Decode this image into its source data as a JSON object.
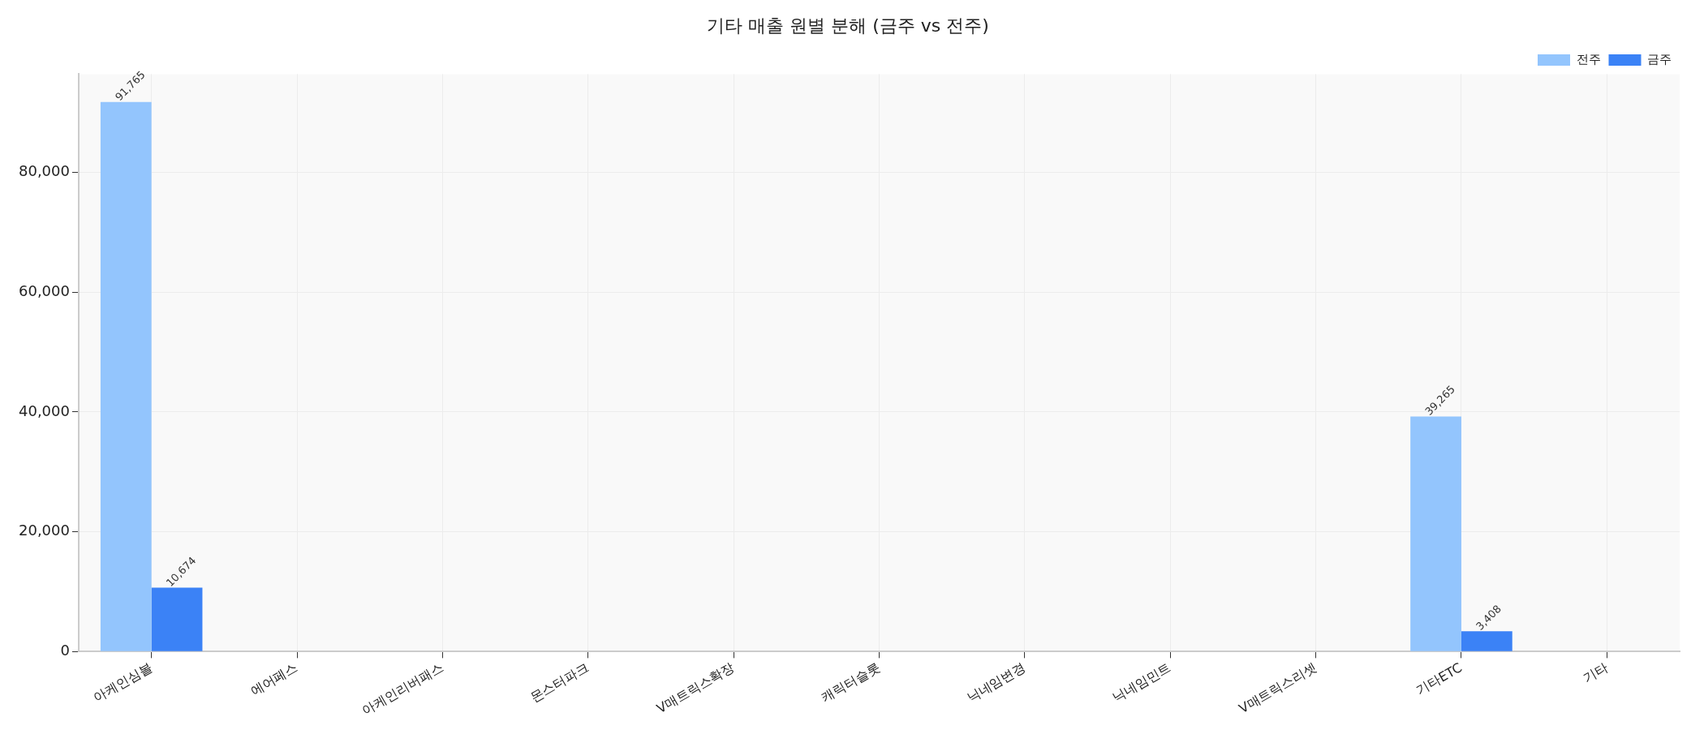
{
  "chart_data": {
    "type": "bar",
    "title": "기타 매출 원별 분해 (금주 vs 전주)",
    "categories": [
      "아케인심볼",
      "에어페스",
      "아케인리버패스",
      "몬스터파크",
      "V매트릭스확장",
      "캐릭터슬롯",
      "닉네임변경",
      "닉네임민트",
      "V매트릭스리셋",
      "기타ETC",
      "기타"
    ],
    "series": [
      {
        "name": "전주",
        "color": "#93c5fd",
        "values": [
          91765,
          0,
          0,
          0,
          0,
          0,
          0,
          0,
          0,
          39265,
          0
        ],
        "value_labels": [
          "91,765",
          null,
          null,
          null,
          null,
          null,
          null,
          null,
          null,
          "39,265",
          null
        ]
      },
      {
        "name": "금주",
        "color": "#3b82f6",
        "values": [
          10674,
          0,
          0,
          0,
          0,
          0,
          0,
          0,
          0,
          3408,
          0
        ],
        "value_labels": [
          "10,674",
          null,
          null,
          null,
          null,
          null,
          null,
          null,
          null,
          "3,408",
          null
        ]
      }
    ],
    "ylim": [
      0,
      96400
    ],
    "yticks": [
      0,
      {
        "value": 20000,
        "label": "20,000"
      },
      {
        "value": 40000,
        "label": "40,000"
      },
      {
        "value": 60000,
        "label": "60,000"
      },
      {
        "value": 80000,
        "label": "80,000"
      }
    ],
    "grid": true,
    "legend": "top right"
  }
}
